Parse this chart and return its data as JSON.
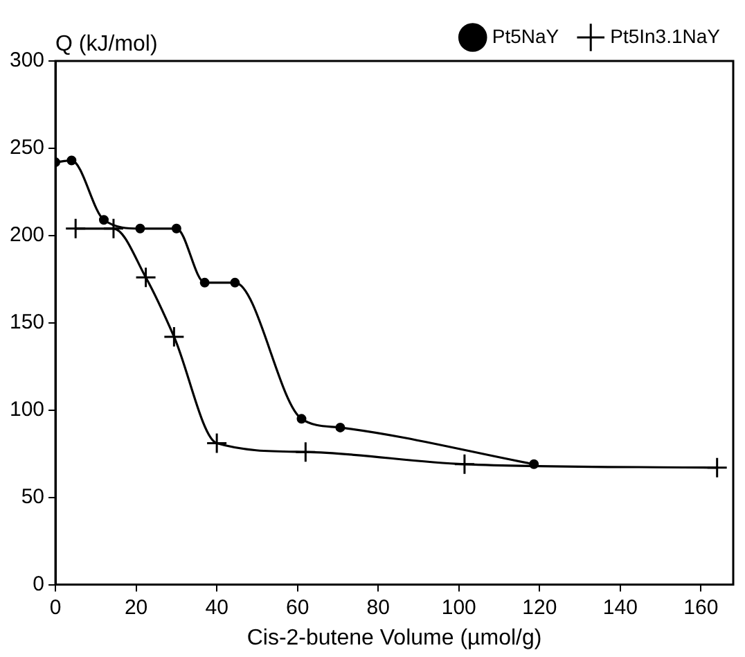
{
  "chart_data": {
    "type": "line",
    "xlabel": "Cis-2-butene Volume (µmol/g)",
    "ylabel": "Q (kJ/mol)",
    "xlim": [
      0,
      168
    ],
    "xticks": [
      0,
      20,
      40,
      60,
      80,
      100,
      120,
      140,
      160
    ],
    "ylim": [
      0,
      300
    ],
    "yticks": [
      0,
      50,
      100,
      150,
      200,
      250,
      300
    ],
    "grid": false,
    "legend": "top right",
    "series": [
      {
        "name": "Pt5NaY",
        "color": "#000000",
        "marker": "circle",
        "x": [
          0,
          4,
          12,
          21,
          30,
          37,
          44.5,
          61,
          70.6,
          118.6
        ],
        "values": [
          242,
          243,
          209,
          204,
          204,
          173,
          173,
          95,
          90,
          69
        ]
      },
      {
        "name": "Pt5In3.1NaY",
        "color": "#000000",
        "marker": "cross",
        "x": [
          5,
          14.4,
          22.4,
          29.4,
          40,
          62,
          101.4,
          164
        ],
        "values": [
          204,
          204,
          176,
          142,
          81,
          76,
          69,
          67
        ]
      }
    ]
  }
}
